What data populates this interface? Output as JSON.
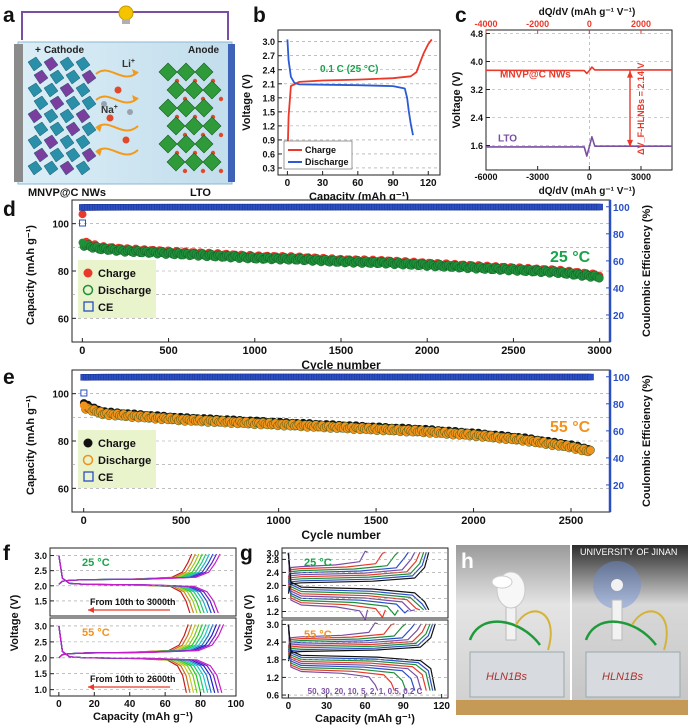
{
  "panels": {
    "a": {
      "letter": "a",
      "plus": "+",
      "cathode_label": "Cathode",
      "anode_label": "Anode",
      "ion_li": "Li",
      "ion_li_sup": "+",
      "ion_na": "Na",
      "ion_na_sup": "+",
      "left_caption": "MNVP@C NWs",
      "right_caption": "LTO",
      "colors": {
        "wire": "#7a4fa3",
        "bulb": "#f5c400",
        "electrolyte": "#cfe6f2",
        "arrows": "#f29a1a",
        "cathode_crystal": "#2a8fa8",
        "anode_crystal": "#2f9a3a"
      }
    },
    "b": {
      "letter": "b",
      "annotation": "0.1 C (25 °C)",
      "annotation_color": "#19a34a",
      "xlabel": "Capacity (mAh g⁻¹)",
      "ylabel": "Voltage (V)",
      "xticks": [
        "0",
        "30",
        "60",
        "90",
        "120"
      ],
      "yticks": [
        "0.3",
        "0.6",
        "0.9",
        "1.2",
        "1.5",
        "1.8",
        "2.1",
        "2.4",
        "2.7",
        "3.0"
      ],
      "legend": [
        "Charge",
        "Discharge"
      ]
    },
    "c": {
      "letter": "c",
      "top_axis_label": "dQ/dV (mAh g⁻¹ V⁻¹)",
      "bottom_axis_label": "dQ/dV (mAh g⁻¹ V⁻¹)",
      "ylabel": "Voltage (V)",
      "top_ticks": [
        "-4000",
        "-2000",
        "0",
        "2000"
      ],
      "bottom_ticks": [
        "-6000",
        "-3000",
        "0",
        "3000"
      ],
      "yticks": [
        "1.6",
        "2.4",
        "3.2",
        "4.0",
        "4.8"
      ],
      "label_mnvp": "MNVP@C NWs",
      "label_lto": "LTO",
      "delta_label": "ΔV_F-HLNBs = 2.14 V"
    },
    "d": {
      "letter": "d",
      "temp": "25 °C",
      "temp_color": "#19a34a",
      "xlabel": "Cycle number",
      "ylabel": "Capacity (mAh g⁻¹)",
      "y2label": "Coulombic Efficiency (%)",
      "xticks": [
        "0",
        "500",
        "1000",
        "1500",
        "2000",
        "2500",
        "3000"
      ],
      "yticks": [
        "60",
        "80",
        "100"
      ],
      "y2ticks": [
        "20",
        "40",
        "60",
        "80",
        "100"
      ],
      "legend": [
        "Charge",
        "Discharge",
        "CE"
      ]
    },
    "e": {
      "letter": "e",
      "temp": "55 °C",
      "temp_color": "#f2921a",
      "xlabel": "Cycle number",
      "ylabel": "Capacity (mAh g⁻¹)",
      "y2label": "Coulombic Efficiency (%)",
      "xticks": [
        "0",
        "500",
        "1000",
        "1500",
        "2000",
        "2500"
      ],
      "yticks": [
        "60",
        "80",
        "100"
      ],
      "y2ticks": [
        "20",
        "40",
        "60",
        "80",
        "100"
      ],
      "legend": [
        "Charge",
        "Discharge",
        "CE"
      ]
    },
    "f": {
      "letter": "f",
      "top_temp": "25 °C",
      "bottom_temp": "55 °C",
      "top_note": "From 10th to 3000th",
      "bottom_note": "From 10th to 2600th",
      "xlabel": "Capacity (mAh g⁻¹)",
      "ylabel": "Voltage (V)",
      "xticks": [
        "0",
        "20",
        "40",
        "60",
        "80",
        "100"
      ],
      "yticks_top": [
        "1.5",
        "2.0",
        "2.5",
        "3.0"
      ],
      "yticks_bottom": [
        "1.0",
        "1.5",
        "2.0",
        "2.5",
        "3.0"
      ]
    },
    "g": {
      "letter": "g",
      "top_temp": "25 °C",
      "bottom_temp": "55 °C",
      "rates_text": "50, 30, 20, 10, 5, 2, 1, 0.5, 0.2 C",
      "xlabel": "Capacity (mAh g⁻¹)",
      "ylabel": "Voltage (V)",
      "xticks": [
        "0",
        "30",
        "60",
        "90",
        "120"
      ],
      "yticks_top": [
        "1.2",
        "1.6",
        "2.0",
        "2.4",
        "2.8",
        "3.0"
      ],
      "yticks_bottom": [
        "0.6",
        "1.2",
        "1.8",
        "2.4",
        "3.0"
      ]
    },
    "h": {
      "letter": "h",
      "banner": "UNIVERSITY OF JINAN",
      "pouch_text": "HLN1Bs"
    }
  },
  "chart_data": [
    {
      "panel": "b",
      "type": "line",
      "xlabel": "Capacity (mAh g⁻¹)",
      "ylabel": "Voltage (V)",
      "xlim": [
        -8,
        130
      ],
      "ylim": [
        0.15,
        3.25
      ],
      "series": [
        {
          "name": "Charge",
          "color": "#e8392a",
          "x": [
            0,
            1,
            3,
            10,
            30,
            60,
            90,
            105,
            110,
            113,
            116,
            120,
            123
          ],
          "y": [
            0.45,
            1.4,
            2.05,
            2.14,
            2.17,
            2.19,
            2.22,
            2.26,
            2.35,
            2.55,
            2.75,
            2.95,
            3.05
          ]
        },
        {
          "name": "Discharge",
          "color": "#2a5bd4",
          "x": [
            0,
            1,
            3,
            6,
            10,
            30,
            60,
            90,
            100,
            102,
            103.5,
            105,
            107
          ],
          "y": [
            3.05,
            2.6,
            2.25,
            2.12,
            2.09,
            2.08,
            2.07,
            2.05,
            2.0,
            1.8,
            1.5,
            1.25,
            1.0
          ]
        }
      ]
    },
    {
      "panel": "c",
      "type": "line",
      "xlabel": "dQ/dV (mAh g⁻¹ V⁻¹)",
      "ylabel": "Voltage (V)",
      "xlim": [
        -6000,
        4800
      ],
      "ylim": [
        0.9,
        4.9
      ],
      "series": [
        {
          "name": "MNVP@C NWs",
          "color": "#e8392a",
          "x": [
            -6000,
            -300,
            -150,
            0,
            150,
            320,
            4800
          ],
          "y": [
            3.75,
            3.74,
            3.66,
            3.74,
            3.84,
            3.76,
            3.76
          ]
        },
        {
          "name": "LTO",
          "color": "#7a4fa3",
          "x": [
            -6000,
            -300,
            -150,
            0,
            150,
            320,
            4800
          ],
          "y": [
            1.56,
            1.56,
            1.3,
            1.56,
            1.85,
            1.58,
            1.58
          ]
        }
      ]
    },
    {
      "panel": "d",
      "type": "scatter",
      "xlabel": "Cycle number",
      "ylabel": "Capacity (mAh g⁻¹)",
      "y2label": "Coulombic Efficiency (%)",
      "xlim": [
        -60,
        3060
      ],
      "ylim": [
        50,
        110
      ],
      "y2lim": [
        0,
        105
      ],
      "series": [
        {
          "name": "Charge",
          "color": "#e8392a",
          "axis": "left",
          "x": [
            1,
            10,
            100,
            250,
            500,
            750,
            1000,
            1250,
            1500,
            1750,
            2000,
            2250,
            2500,
            2750,
            3000
          ],
          "y": [
            104,
            92,
            90,
            89,
            88,
            87,
            86,
            85.5,
            84.5,
            84,
            83,
            82,
            81,
            80,
            78
          ]
        },
        {
          "name": "Discharge",
          "color": "#1f8f3a",
          "axis": "left",
          "x": [
            1,
            10,
            100,
            250,
            500,
            750,
            1000,
            1250,
            1500,
            1750,
            2000,
            2250,
            2500,
            2750,
            3000
          ],
          "y": [
            92,
            91,
            89.5,
            88.5,
            87.5,
            86.5,
            85.5,
            85,
            84,
            83.5,
            82.5,
            81.5,
            80.5,
            79.5,
            77.5
          ]
        },
        {
          "name": "CE",
          "color": "#2a4fc4",
          "axis": "right",
          "x": [
            1,
            10,
            100,
            500,
            1000,
            1500,
            2000,
            2500,
            3000
          ],
          "y": [
            88,
            99.5,
            99.6,
            99.7,
            99.7,
            99.8,
            99.8,
            99.8,
            99.8
          ]
        }
      ]
    },
    {
      "panel": "e",
      "type": "scatter",
      "xlabel": "Cycle number",
      "ylabel": "Capacity (mAh g⁻¹)",
      "y2label": "Coulombic Efficiency (%)",
      "xlim": [
        -60,
        2700
      ],
      "ylim": [
        50,
        110
      ],
      "y2lim": [
        0,
        105
      ],
      "series": [
        {
          "name": "Charge",
          "color": "#111111",
          "axis": "left",
          "x": [
            1,
            10,
            100,
            250,
            500,
            750,
            1000,
            1250,
            1500,
            1750,
            2000,
            2250,
            2500,
            2600
          ],
          "y": [
            96,
            95,
            92,
            91,
            89.5,
            88.5,
            87.5,
            86.5,
            85.5,
            84.5,
            83,
            81,
            78,
            76
          ]
        },
        {
          "name": "Discharge",
          "color": "#f2921a",
          "axis": "left",
          "x": [
            1,
            10,
            100,
            250,
            500,
            750,
            1000,
            1250,
            1500,
            1750,
            2000,
            2250,
            2500,
            2600
          ],
          "y": [
            95,
            94,
            91.5,
            90.5,
            89,
            88,
            87,
            86,
            85,
            84,
            82.5,
            80.5,
            77.5,
            75.5
          ]
        },
        {
          "name": "CE",
          "color": "#2a4fc4",
          "axis": "right",
          "x": [
            1,
            10,
            100,
            500,
            1000,
            1500,
            2000,
            2500,
            2600
          ],
          "y": [
            88,
            99.6,
            99.7,
            99.8,
            99.8,
            99.8,
            99.8,
            99.8,
            99.8
          ]
        }
      ]
    },
    {
      "panel": "f-25C",
      "type": "line",
      "xlabel": "Capacity (mAh g⁻¹)",
      "ylabel": "Voltage (V)",
      "note": "From 10th to 3000th",
      "xlim": [
        -5,
        100
      ],
      "ylim": [
        1.0,
        3.25
      ],
      "charge_end_capacities": [
        75,
        77,
        79,
        81,
        83,
        85,
        87,
        89,
        91
      ],
      "discharge_end_capacities": [
        74,
        76,
        78,
        80,
        82,
        84,
        86,
        88,
        90
      ],
      "plateau_voltage": 2.1
    },
    {
      "panel": "f-55C",
      "type": "line",
      "xlabel": "Capacity (mAh g⁻¹)",
      "ylabel": "Voltage (V)",
      "note": "From 10th to 2600th",
      "xlim": [
        -5,
        100
      ],
      "ylim": [
        0.8,
        3.25
      ],
      "charge_end_capacities": [
        73,
        75,
        77,
        79,
        81,
        83,
        85,
        87,
        89,
        91,
        93
      ],
      "discharge_end_capacities": [
        72,
        74,
        76,
        78,
        80,
        82,
        84,
        86,
        88,
        90,
        92
      ],
      "plateau_voltage": 2.05
    },
    {
      "panel": "g-25C",
      "type": "line",
      "xlabel": "Capacity (mAh g⁻¹)",
      "ylabel": "Voltage (V)",
      "xlim": [
        -5,
        125
      ],
      "ylim": [
        1.0,
        3.15
      ],
      "series": [
        {
          "name": "50 C",
          "end_capacity": 62,
          "color": "#7a4fa3"
        },
        {
          "name": "30 C",
          "end_capacity": 76,
          "color": "#e8392a"
        },
        {
          "name": "20 C",
          "end_capacity": 86,
          "color": "#1f8f3a"
        },
        {
          "name": "10 C",
          "end_capacity": 94,
          "color": "#2a4fc4"
        },
        {
          "name": "5 C",
          "end_capacity": 99,
          "color": "#7a4fa3"
        },
        {
          "name": "2 C",
          "end_capacity": 103,
          "color": "#e8392a"
        },
        {
          "name": "1 C",
          "end_capacity": 106,
          "color": "#1f8f3a"
        },
        {
          "name": "0.5 C",
          "end_capacity": 108,
          "color": "#2a4fc4"
        },
        {
          "name": "0.2 C",
          "end_capacity": 110,
          "color": "#111111"
        }
      ]
    },
    {
      "panel": "g-55C",
      "type": "line",
      "xlabel": "Capacity (mAh g⁻¹)",
      "ylabel": "Voltage (V)",
      "xlim": [
        -5,
        125
      ],
      "ylim": [
        0.5,
        3.15
      ],
      "series": [
        {
          "name": "50 C",
          "end_capacity": 70,
          "color": "#7a4fa3"
        },
        {
          "name": "30 C",
          "end_capacity": 83,
          "color": "#e8392a"
        },
        {
          "name": "20 C",
          "end_capacity": 92,
          "color": "#1f8f3a"
        },
        {
          "name": "10 C",
          "end_capacity": 99,
          "color": "#2a4fc4"
        },
        {
          "name": "5 C",
          "end_capacity": 104,
          "color": "#7a4fa3"
        },
        {
          "name": "2 C",
          "end_capacity": 108,
          "color": "#e8392a"
        },
        {
          "name": "1 C",
          "end_capacity": 111,
          "color": "#1f8f3a"
        },
        {
          "name": "0.5 C",
          "end_capacity": 113,
          "color": "#2a4fc4"
        },
        {
          "name": "0.2 C",
          "end_capacity": 115,
          "color": "#111111"
        }
      ]
    }
  ]
}
